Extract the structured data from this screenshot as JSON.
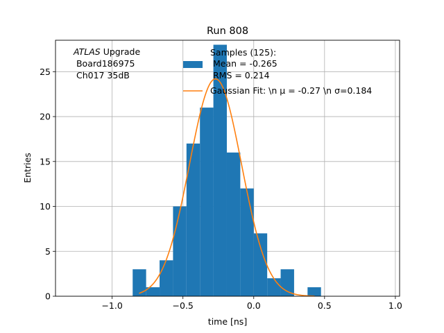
{
  "chart_data": {
    "type": "bar",
    "title": "Run 808",
    "xlabel": "time [ns]",
    "ylabel": "Entries",
    "xlim": [
      -1.4,
      1.03
    ],
    "ylim": [
      0,
      28.5
    ],
    "grid": true,
    "x_ticks": [
      -1.0,
      -0.5,
      0.0,
      0.5,
      1.0
    ],
    "x_tick_labels": [
      "−1.0",
      "−0.5",
      "0.0",
      "0.5",
      "1.0"
    ],
    "y_ticks": [
      0,
      5,
      10,
      15,
      20,
      25
    ],
    "y_tick_labels": [
      "0",
      "5",
      "10",
      "15",
      "20",
      "25"
    ],
    "annotation": {
      "line1_italic": "ATLAS",
      "line1_rest": " Upgrade",
      "line2": " Board186975",
      "line3": " Ch017 35dB"
    },
    "histogram": {
      "name_lines": [
        "Samples (125):",
        " Mean = -0.265",
        " RMS = 0.214"
      ],
      "color": "#1f77b4",
      "bins": [
        {
          "x0": -0.855,
          "x1": -0.76,
          "count": 3
        },
        {
          "x0": -0.76,
          "x1": -0.665,
          "count": 1
        },
        {
          "x0": -0.665,
          "x1": -0.57,
          "count": 4
        },
        {
          "x0": -0.57,
          "x1": -0.475,
          "count": 10
        },
        {
          "x0": -0.475,
          "x1": -0.38,
          "count": 17
        },
        {
          "x0": -0.38,
          "x1": -0.285,
          "count": 21
        },
        {
          "x0": -0.285,
          "x1": -0.19,
          "count": 28
        },
        {
          "x0": -0.19,
          "x1": -0.095,
          "count": 16
        },
        {
          "x0": -0.095,
          "x1": 0.0,
          "count": 12
        },
        {
          "x0": 0.0,
          "x1": 0.095,
          "count": 7
        },
        {
          "x0": 0.095,
          "x1": 0.19,
          "count": 2
        },
        {
          "x0": 0.19,
          "x1": 0.285,
          "count": 3
        },
        {
          "x0": 0.285,
          "x1": 0.38,
          "count": 0
        },
        {
          "x0": 0.38,
          "x1": 0.475,
          "count": 1
        }
      ]
    },
    "fit": {
      "name": "Gaussian Fit: \\n μ = -0.27 \\n σ=0.184",
      "color": "#ff7f0e",
      "mu": -0.27,
      "sigma": 0.184,
      "amplitude": 24.2,
      "x_range": [
        -0.81,
        0.43
      ]
    }
  }
}
